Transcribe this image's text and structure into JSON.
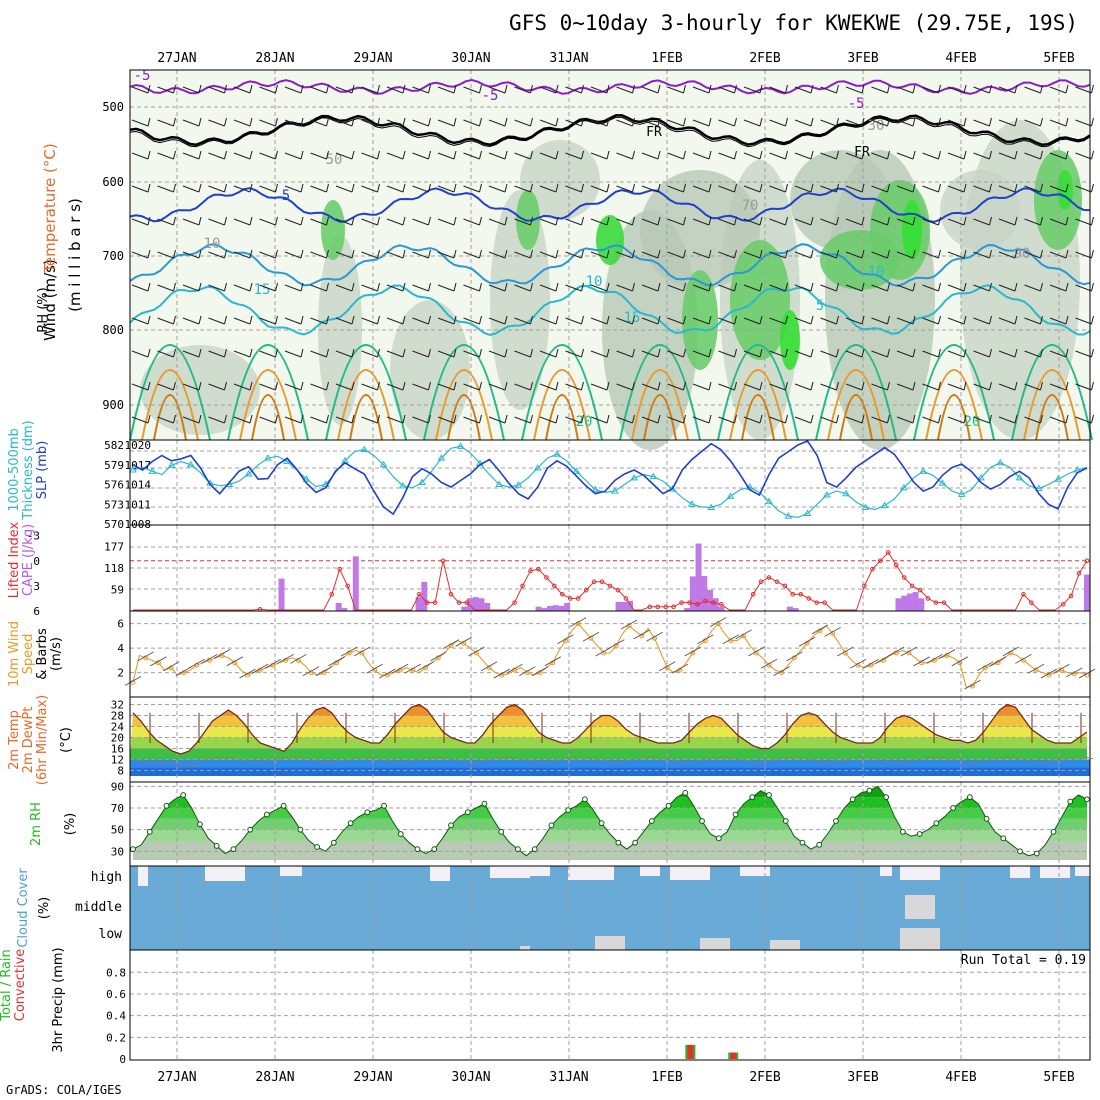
{
  "title": "GFS 0~10day 3-hourly for KWEKWE (29.75E, 19S)",
  "footer": "GrADS: COLA/IGES",
  "days": [
    "27JAN",
    "28JAN",
    "29JAN",
    "30JAN",
    "31JAN",
    "1FEB",
    "2FEB",
    "3FEB",
    "4FEB",
    "5FEB"
  ],
  "colors": {
    "purple": "#8c1cc8",
    "cyan": "#29b8cc",
    "blue": "#1f3fcc",
    "orange": "#e89a2a",
    "red": "#e03030",
    "green": "#22bb22",
    "cloud_blue": "#6aaad6",
    "cloud_white": "#f4f0f8",
    "cloud_gray": "#d8d8d8"
  },
  "panels": [
    {
      "id": "upper",
      "labels": [
        {
          "text": "Wind (m/s)",
          "color": "#000000"
        },
        {
          "text": "Temperature (°C)",
          "color": "#e36a2a"
        },
        {
          "text": "(m i l l i b a r s)",
          "color": "#000000"
        },
        {
          "text": "RH (%)",
          "color": "#000000"
        }
      ]
    },
    {
      "id": "slp",
      "labels": [
        {
          "text": "1000-500mb",
          "color": "#29b8cc"
        },
        {
          "text": "Thickness (dm)",
          "color": "#29b8cc"
        },
        {
          "text": "SLP (mb)",
          "color": "#1f3fcc"
        }
      ]
    },
    {
      "id": "cape",
      "labels": [
        {
          "text": "Lifted Index",
          "color": "#e03030"
        },
        {
          "text": "CAPE (J/kg)",
          "color": "#b35ae8"
        }
      ]
    },
    {
      "id": "wind10",
      "labels": [
        {
          "text": "10m Wind",
          "color": "#e89a2a"
        },
        {
          "text": "Speed",
          "color": "#e89a2a"
        },
        {
          "text": "& Barbs",
          "color": "#000000"
        },
        {
          "text": "(m/s)",
          "color": "#000000"
        }
      ]
    },
    {
      "id": "temp2m",
      "labels": [
        {
          "text": "2m Temp",
          "color": "#e36a2a"
        },
        {
          "text": "2m DewPt",
          "color": "#e36a2a"
        },
        {
          "text": "(6hr Min/Max)",
          "color": "#e36a2a"
        },
        {
          "text": "(°C)",
          "color": "#000000"
        }
      ]
    },
    {
      "id": "rh2m",
      "labels": [
        {
          "text": "2m RH",
          "color": "#22bb22"
        },
        {
          "text": "(%)",
          "color": "#000000"
        }
      ]
    },
    {
      "id": "cloud",
      "labels": [
        {
          "text": "Cloud Cover",
          "color": "#4aa3d6"
        },
        {
          "text": "(%)",
          "color": "#000000"
        }
      ]
    },
    {
      "id": "precip",
      "labels": [
        {
          "text": "Total / Rain",
          "color": "#22bb22"
        },
        {
          "text": "Convective",
          "color": "#e03030"
        },
        {
          "text": "3hr Precip (mm)",
          "color": "#000000"
        }
      ]
    }
  ],
  "chart_data": {
    "type": "meteogram",
    "x_time_step_hours": 3,
    "x_days": [
      "27JAN",
      "28JAN",
      "29JAN",
      "30JAN",
      "31JAN",
      "1FEB",
      "2FEB",
      "3FEB",
      "4FEB",
      "5FEB"
    ],
    "upper_air": {
      "pressure_ticks": [
        500,
        600,
        700,
        800,
        900
      ],
      "contour_labels": [
        {
          "text": "-5",
          "color": "#8c1cc8"
        },
        {
          "text": "-5",
          "color": "#8c1cc8"
        },
        {
          "text": "-5",
          "color": "#8c1cc8"
        },
        {
          "text": "FR",
          "color": "#000000"
        },
        {
          "text": "FR",
          "color": "#000000"
        },
        {
          "text": "5",
          "color": "#1f3fcc"
        },
        {
          "text": "10",
          "color": "#29b8cc"
        },
        {
          "text": "10",
          "color": "#29b8cc"
        },
        {
          "text": "15",
          "color": "#29b8cc"
        },
        {
          "text": "15",
          "color": "#29b8cc"
        },
        {
          "text": "5",
          "color": "#29b8cc"
        },
        {
          "text": "20",
          "color": "#22bb88"
        },
        {
          "text": "20",
          "color": "#22bb88"
        },
        {
          "text": "30",
          "color": "#999999"
        },
        {
          "text": "50",
          "color": "#999999"
        },
        {
          "text": "70",
          "color": "#999999"
        },
        {
          "text": "90",
          "color": "#999999"
        },
        {
          "text": "10",
          "color": "#999999"
        }
      ]
    },
    "slp": {
      "left_ticks": [
        582,
        579,
        576,
        573,
        570
      ],
      "right_ticks": [
        1020,
        1017,
        1014,
        1011,
        1008
      ],
      "thickness_dm": [
        578.2,
        578.6,
        578.0,
        577.5,
        578.9,
        579.5,
        579.0,
        577.8,
        576.2,
        575.8,
        576.0,
        576.5,
        577.6,
        579.0,
        580.0,
        580.3,
        579.5,
        578.2,
        576.8,
        575.7,
        576.0,
        577.8,
        579.6,
        581.0,
        581.3,
        580.4,
        579.0,
        577.2,
        575.8,
        575.5,
        576.3,
        578.0,
        580.0,
        581.5,
        581.8,
        580.8,
        579.2,
        577.5,
        576.0,
        575.6,
        575.9,
        577.0,
        578.5,
        580.0,
        580.6,
        579.6,
        578.0,
        576.6,
        575.2,
        574.8,
        575.0,
        576.0,
        577.0,
        577.5,
        577.2,
        576.5,
        575.3,
        574.0,
        573.0,
        572.6,
        572.5,
        573.0,
        574.2,
        575.2,
        575.6,
        574.8,
        573.4,
        572.0,
        571.2,
        571.0,
        571.6,
        573.0,
        574.4,
        575.0,
        574.6,
        573.4,
        572.5,
        572.2,
        572.8,
        573.8,
        575.5,
        577.0,
        578.0,
        577.4,
        576.2,
        575.0,
        574.5,
        575.2,
        577.0,
        578.6,
        579.3,
        578.6,
        577.0,
        575.8,
        575.4,
        576.0,
        576.8,
        577.6,
        578.2,
        578.6
      ],
      "slp_mb": [
        1017.0,
        1016.2,
        1017.5,
        1018.4,
        1017.6,
        1017.9,
        1018.4,
        1016.5,
        1014.0,
        1012.6,
        1014.3,
        1016.0,
        1016.7,
        1014.8,
        1014.9,
        1017.0,
        1018.0,
        1016.3,
        1014.2,
        1012.8,
        1013.5,
        1016.0,
        1017.3,
        1016.4,
        1015.6,
        1013.0,
        1010.6,
        1009.5,
        1012.0,
        1015.2,
        1016.4,
        1015.6,
        1014.3,
        1013.6,
        1014.6,
        1015.6,
        1017.0,
        1017.8,
        1016.1,
        1014.2,
        1012.6,
        1011.8,
        1013.6,
        1016.5,
        1017.6,
        1016.8,
        1015.3,
        1013.8,
        1012.6,
        1013.0,
        1014.6,
        1015.6,
        1016.2,
        1015.4,
        1014.0,
        1012.6,
        1013.4,
        1016.2,
        1017.8,
        1019.0,
        1020.2,
        1019.3,
        1017.6,
        1015.5,
        1013.2,
        1012.4,
        1015.5,
        1018.0,
        1019.0,
        1020.0,
        1020.6,
        1018.4,
        1014.3,
        1013.6,
        1015.0,
        1016.6,
        1017.6,
        1018.6,
        1019.6,
        1018.6,
        1016.6,
        1014.4,
        1013.0,
        1013.6,
        1015.4,
        1016.6,
        1017.1,
        1016.0,
        1014.3,
        1013.3,
        1014.0,
        1015.2,
        1016.0,
        1015.0,
        1012.6,
        1011.0,
        1010.3,
        1013.6,
        1015.8,
        1016.5
      ]
    },
    "cape_li": {
      "cape_ticks": [
        177,
        118,
        59
      ],
      "li_ticks": [
        -3,
        0,
        3,
        6
      ],
      "cape_values": [
        0,
        0,
        0,
        0,
        0,
        0,
        0,
        0,
        0,
        0,
        0,
        0,
        0,
        0,
        0,
        0,
        0,
        0,
        0,
        0,
        0,
        0,
        0,
        0,
        0,
        0,
        89,
        0,
        0,
        0,
        0,
        0,
        0,
        0,
        0,
        0,
        22,
        8,
        0,
        150,
        0,
        0,
        0,
        0,
        0,
        0,
        0,
        0,
        0,
        0,
        38,
        80,
        0,
        0,
        0,
        0,
        0,
        0,
        12,
        35,
        38,
        35,
        22,
        0,
        0,
        0,
        0,
        0,
        0,
        0,
        0,
        12,
        8,
        14,
        16,
        14,
        22,
        0,
        0,
        0,
        0,
        0,
        0,
        0,
        0,
        25,
        25,
        28,
        0,
        0,
        0,
        0,
        0,
        0,
        0,
        0,
        0,
        8,
        95,
        185,
        96,
        58,
        35,
        12,
        0,
        0,
        0,
        0,
        0,
        0,
        0,
        0,
        0,
        0,
        0,
        12,
        8,
        0,
        0,
        0,
        0,
        0,
        0,
        0,
        0,
        0,
        0,
        0,
        0,
        0,
        0,
        0,
        0,
        0,
        35,
        42,
        48,
        52,
        35,
        0,
        0,
        0,
        0,
        0,
        0,
        0,
        0,
        0,
        0,
        0,
        0,
        0,
        0,
        0,
        0,
        0,
        0,
        0,
        0,
        0,
        0,
        0,
        0,
        0,
        0,
        0,
        0,
        100
      ],
      "li_values": [
        6,
        6,
        6,
        6,
        6,
        6,
        6,
        6,
        6,
        6,
        6,
        6,
        6,
        6,
        6,
        6,
        5.8,
        6,
        6,
        6,
        6,
        6,
        6,
        6,
        6,
        4,
        1,
        3,
        6,
        6,
        6,
        6,
        6,
        6,
        6,
        6,
        4,
        5,
        5,
        0,
        4,
        5,
        5,
        6,
        6,
        6,
        6,
        6,
        5,
        3,
        1.2,
        1,
        2,
        3,
        4,
        4.5,
        4.5,
        3.5,
        2.5,
        2.5,
        3,
        3.5,
        4.5,
        6,
        6,
        5.5,
        5.5,
        5.5,
        5.5,
        5,
        5,
        5.2,
        4.8,
        5,
        5.2,
        6,
        6,
        6,
        4,
        2.5,
        2,
        2.5,
        3,
        4,
        4,
        4.5,
        5,
        5,
        6,
        6,
        6,
        6,
        3,
        1,
        0,
        -1,
        0.5,
        2,
        3,
        3.5,
        4.5,
        5,
        5,
        6,
        6,
        6,
        6,
        6,
        6,
        6,
        6,
        6,
        4,
        5,
        6,
        6,
        6,
        5.2,
        4.2,
        1.5,
        0
      ]
    },
    "wind10m": {
      "y_ticks": [
        2,
        4,
        6
      ],
      "speed": [
        1.2,
        3.4,
        3.2,
        3.0,
        2.8,
        2.2,
        2.4,
        1.8,
        2.0,
        2.2,
        2.6,
        2.8,
        3.0,
        3.2,
        3.4,
        3.2,
        2.8,
        2.2,
        1.8,
        2.0,
        2.2,
        2.4,
        2.6,
        2.8,
        3.0,
        3.2,
        3.0,
        2.6,
        2.0,
        1.8,
        2.0,
        2.4,
        2.8,
        3.2,
        3.6,
        3.8,
        3.6,
        2.8,
        2.2,
        1.8,
        1.8,
        2.0,
        2.2,
        2.4,
        2.2,
        2.0,
        2.4,
        2.8,
        3.2,
        3.6,
        4.2,
        4.6,
        4.4,
        4.0,
        3.6,
        3.0,
        2.4,
        2.0,
        1.8,
        1.9,
        2.2,
        2.4,
        2.0,
        1.8,
        2.0,
        2.4,
        2.8,
        3.8,
        4.6,
        5.4,
        6.0,
        5.4,
        4.8,
        4.2,
        3.6,
        3.6,
        4.2,
        5.2,
        5.8,
        5.4,
        5.0,
        5.6,
        4.8,
        3.6,
        2.4,
        2.0,
        2.2,
        2.8,
        3.6,
        4.2,
        4.6,
        5.4,
        6.0,
        5.2,
        4.6,
        4.6,
        5.0,
        4.2,
        3.6,
        3.2,
        2.6,
        2.2,
        2.0,
        2.6,
        3.2,
        3.8,
        4.4,
        5.0,
        5.4,
        5.8,
        5.2,
        4.4,
        3.6,
        3.0,
        2.6,
        2.4,
        2.6,
        2.8,
        3.0,
        3.4,
        3.6,
        3.8,
        3.6,
        3.2,
        2.8,
        2.8,
        3.0,
        3.2,
        3.4,
        3.2,
        2.8,
        0.8,
        0.9,
        1.8,
        2.4,
        2.6,
        2.8,
        3.2,
        3.6,
        3.4,
        3.0,
        2.6,
        2.2,
        2.0,
        1.8,
        2.0,
        2.2,
        2.0,
        1.9,
        2.0,
        1.8
      ]
    },
    "temp2m": {
      "y_ticks": [
        8,
        12,
        16,
        20,
        24,
        28,
        32
      ],
      "temp": [
        29,
        26,
        22,
        19,
        17,
        15,
        14,
        15,
        18,
        22,
        26,
        28,
        30,
        28,
        25,
        21,
        18,
        17,
        16,
        15,
        18,
        23,
        27,
        30,
        31,
        29,
        25,
        22,
        20,
        19,
        18,
        18,
        21,
        25,
        28,
        31,
        32,
        30,
        26,
        22,
        20,
        19,
        18,
        18,
        21,
        25,
        28,
        31,
        32,
        30,
        26,
        22,
        20,
        19,
        18,
        18,
        20,
        23,
        26,
        28,
        28,
        26,
        23,
        21,
        20,
        19,
        18,
        18,
        18,
        19,
        22,
        25,
        27,
        28,
        27,
        24,
        21,
        19,
        17,
        16,
        16,
        18,
        21,
        25,
        28,
        29,
        28,
        25,
        22,
        20,
        19,
        18,
        18,
        18,
        20,
        24,
        27,
        28,
        27,
        25,
        23,
        21,
        20,
        19,
        19,
        18,
        19,
        22,
        26,
        30,
        32,
        31,
        27,
        23,
        21,
        19,
        18,
        18,
        18,
        20,
        22
      ],
      "dewpt": [
        14,
        13,
        12,
        12,
        12,
        13,
        13,
        13,
        13,
        14,
        14,
        14,
        14,
        14,
        14,
        14,
        14,
        14,
        14,
        14,
        14,
        14,
        14,
        14,
        14,
        14,
        14,
        14,
        14,
        14,
        14,
        14,
        14,
        14,
        14,
        14,
        14,
        14,
        14,
        14,
        14,
        14,
        14,
        14,
        14,
        14,
        14,
        14,
        14,
        14,
        14,
        14,
        14,
        14,
        14,
        14,
        14,
        14,
        14,
        14,
        14,
        14,
        14,
        14,
        14,
        14,
        14,
        14,
        14,
        14,
        14,
        14,
        14,
        14,
        14,
        14,
        14,
        14,
        14,
        14,
        14,
        14,
        14,
        14,
        14,
        14,
        14,
        14,
        14,
        14,
        14,
        14,
        14,
        14,
        14,
        14,
        14,
        14,
        14,
        14,
        14,
        14,
        14,
        14,
        14,
        14,
        14,
        14,
        14,
        14,
        14,
        14,
        14,
        14,
        14,
        14,
        14,
        14,
        14,
        14,
        14,
        14
      ],
      "min_max_bars": true
    },
    "rh2m": {
      "y_ticks": [
        30,
        50,
        70,
        90
      ],
      "rh": [
        32,
        36,
        48,
        60,
        72,
        78,
        82,
        70,
        55,
        42,
        35,
        28,
        32,
        40,
        50,
        58,
        64,
        68,
        72,
        62,
        50,
        40,
        34,
        30,
        38,
        48,
        56,
        62,
        66,
        68,
        72,
        58,
        46,
        38,
        32,
        28,
        32,
        42,
        54,
        62,
        66,
        70,
        74,
        60,
        48,
        38,
        32,
        26,
        32,
        42,
        54,
        62,
        68,
        72,
        78,
        68,
        56,
        46,
        38,
        32,
        38,
        48,
        58,
        66,
        72,
        80,
        84,
        72,
        58,
        46,
        42,
        48,
        64,
        74,
        80,
        86,
        82,
        70,
        58,
        44,
        38,
        32,
        36,
        46,
        58,
        70,
        78,
        84,
        86,
        90,
        80,
        62,
        48,
        44,
        46,
        50,
        56,
        62,
        70,
        76,
        80,
        74,
        60,
        48,
        42,
        36,
        30,
        26,
        28,
        36,
        48,
        62,
        76,
        82,
        78
      ]
    },
    "cloud": {
      "y_labels": [
        "high",
        "middle",
        "low"
      ]
    },
    "precip": {
      "y_ticks": [
        0,
        0.2,
        0.4,
        0.6,
        0.8
      ],
      "run_total_label": "Run Total = 0.19",
      "bars": [
        {
          "index": 45.5,
          "total": 0.13,
          "conv": 0.13
        },
        {
          "index": 49,
          "total": 0.06,
          "conv": 0.06
        }
      ]
    }
  }
}
